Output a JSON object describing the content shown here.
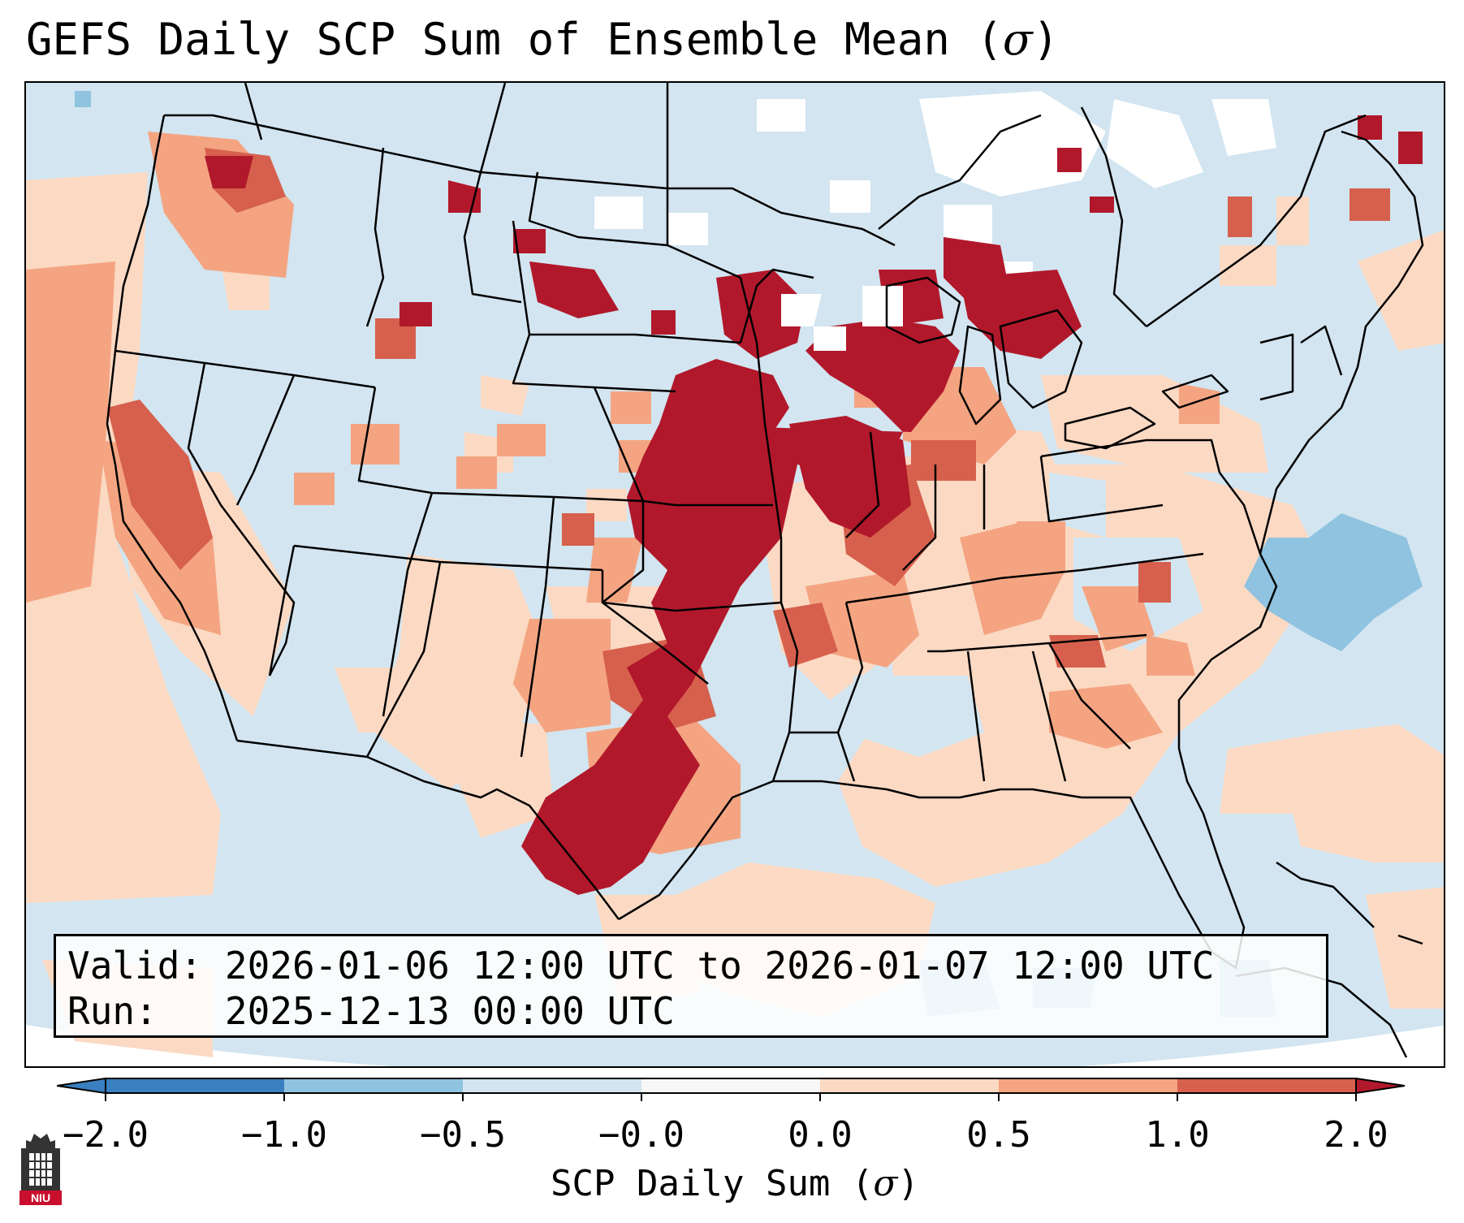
{
  "title": {
    "text": "GEFS Daily SCP Sum of Ensemble Mean (",
    "symbol": "σ",
    "close": ")"
  },
  "info_box": {
    "valid_label": "Valid:",
    "valid_value": "2026-01-06 12:00 UTC to 2026-01-07 12:00 UTC",
    "run_label": "Run:",
    "run_value": "2025-12-13 00:00 UTC"
  },
  "colorbar": {
    "ticks": [
      "−2.0",
      "−1.0",
      "−0.5",
      "−0.0",
      "0.0",
      "0.5",
      "1.0",
      "2.0"
    ],
    "label_text": "SCP Daily Sum (",
    "label_symbol": "σ",
    "label_close": ")",
    "colors": [
      "#3a7fc0",
      "#8fc3e0",
      "#d2e5f0",
      "#f7f7f7",
      "#fbd9c3",
      "#f4a481",
      "#d6604d",
      "#b2182b"
    ]
  },
  "legend_classes": {
    "strong_negative": "#8fc3e0",
    "weak_negative": "#d2e5f0",
    "near_zero": "#ffffff",
    "weak_positive": "#fbd9c3",
    "moderate_positive": "#f4a481",
    "high_positive": "#d6604d",
    "very_high_positive": "#b2182b"
  },
  "logo": {
    "text": "NIU"
  }
}
